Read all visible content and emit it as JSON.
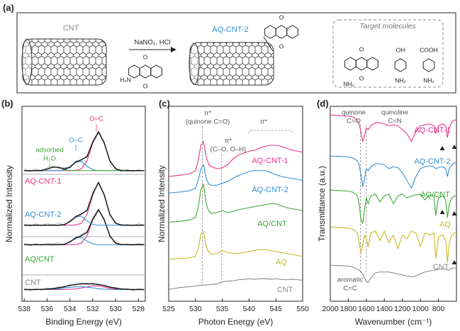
{
  "scheme": {
    "panel": "(a)",
    "start_label": "CNT",
    "reagents": "NaNO₂, HCl",
    "product_label": "AQ-CNT-2",
    "target_title": "Target molecules",
    "atom_labels": [
      "O",
      "O",
      "H₂N",
      "O",
      "O",
      "O",
      "O",
      "NH₂",
      "OH",
      "NH₂",
      "COOH",
      "NH₂"
    ]
  },
  "chart_data": [
    {
      "type": "line",
      "panel": "(b)",
      "xlabel": "Binding Energy (eV)",
      "ylabel": "Normalized Intensity",
      "xlim": [
        538.2,
        527.4
      ],
      "ylim": [
        0,
        100
      ],
      "xticks": [
        538,
        536,
        534,
        532,
        530,
        528
      ],
      "x": [
        538,
        537.5,
        537,
        536.5,
        536,
        535.5,
        535,
        534.5,
        534,
        533.5,
        533,
        532.5,
        532,
        531.5,
        531,
        530.5,
        530,
        529.5,
        529,
        528.5,
        528,
        527.5
      ],
      "series": [
        {
          "color": "#b0b0b0",
          "values": [
            6.7,
            5.3,
            6.5,
            5.6,
            6.8,
            6.1,
            7.5,
            7.0,
            8.6,
            8.1,
            9.5,
            8.6,
            9.4,
            8.2,
            8.5,
            7.0,
            7.2,
            5.8,
            6.7,
            5.4,
            6.6,
            5.8
          ]
        },
        {
          "color": "#e8318a",
          "values": [
            6,
            6,
            6,
            6,
            6,
            6,
            6,
            6,
            6.1,
            6.3,
            6.8,
            7.4,
            7.9,
            7.9,
            7.3,
            6.7,
            6.3,
            6.1,
            6,
            6,
            6,
            6
          ]
        },
        {
          "color": "#2f8fd8",
          "values": [
            6,
            6,
            6,
            6,
            6.1,
            6.2,
            6.3,
            6.8,
            7.1,
            7.4,
            7.5,
            7.2,
            6.9,
            6.4,
            6.2,
            6.1,
            6,
            6,
            6,
            6,
            6,
            6
          ]
        },
        {
          "color": "#111111",
          "values": [
            6,
            6,
            6,
            6.1,
            6.2,
            6.5,
            6.9,
            7.5,
            8.1,
            8.6,
            8.9,
            9,
            8.9,
            8.6,
            8.0,
            7.3,
            6.7,
            6.3,
            6.1,
            6,
            6,
            6
          ]
        },
        {
          "color": "#b0b0b0",
          "values": [
            29.7,
            28.4,
            29.6,
            28.6,
            29.9,
            29.2,
            30.1,
            28.7,
            30.9,
            31.8,
            34.2,
            35.9,
            41.4,
            46.3,
            42.5,
            33.0,
            30.3,
            28.6,
            29.5,
            28.5,
            29.7,
            29.0
          ]
        },
        {
          "color": "#e8318a",
          "values": [
            29,
            29,
            29,
            29,
            29,
            29,
            29,
            29,
            29,
            29.1,
            29.8,
            33.5,
            41.8,
            47,
            41.8,
            33.5,
            29.8,
            29.1,
            29,
            29,
            29,
            29
          ]
        },
        {
          "color": "#2f8fd8",
          "values": [
            29,
            29,
            29,
            29,
            29,
            29,
            29,
            29.2,
            30.4,
            32.4,
            32.8,
            30.8,
            29.4,
            29,
            29,
            29,
            29,
            29,
            29,
            29,
            29,
            29
          ]
        },
        {
          "color": "#111111",
          "values": [
            29,
            29,
            29,
            29,
            29,
            29,
            29,
            29.2,
            30.4,
            32.5,
            33.6,
            35.3,
            42.2,
            47,
            41.8,
            33.5,
            29.8,
            29.1,
            29,
            29,
            29,
            29
          ]
        },
        {
          "color": "#b0b0b0",
          "values": [
            39.6,
            38.5,
            39.8,
            38.7,
            39.9,
            39.2,
            40.2,
            38.8,
            41.5,
            42.8,
            45.3,
            46.1,
            55.8,
            60.3,
            55.2,
            43.9,
            40.6,
            38.5,
            39.5,
            38.7,
            39.8,
            39.1
          ]
        },
        {
          "color": "#e8318a",
          "values": [
            39,
            39,
            39,
            39,
            39,
            39,
            39,
            39,
            39,
            39.1,
            40,
            44.5,
            54.6,
            61,
            54.6,
            44.5,
            40,
            39.1,
            39,
            39,
            39,
            39
          ]
        },
        {
          "color": "#2f8fd8",
          "values": [
            39,
            39,
            39,
            39,
            39,
            39,
            39,
            39.3,
            40.8,
            43.3,
            43.7,
            41.2,
            39.5,
            39,
            39,
            39,
            39,
            39,
            39,
            39,
            39,
            39
          ]
        },
        {
          "color": "#111111",
          "values": [
            39,
            39,
            39,
            39,
            39,
            39,
            39,
            39.3,
            40.8,
            43.4,
            44.7,
            46.7,
            55.1,
            61,
            54.6,
            44.5,
            40,
            39.1,
            39,
            39,
            39,
            39
          ]
        },
        {
          "color": "#b0b0b0",
          "values": [
            67.8,
            66.4,
            67.9,
            66.6,
            68.5,
            69.5,
            68.0,
            68.6,
            68.1,
            72.0,
            72.1,
            74.8,
            81.0,
            86.2,
            82.0,
            71.4,
            68.5,
            66.5,
            67.6,
            66.6,
            67.5,
            66.9
          ]
        },
        {
          "color": "#e8318a",
          "values": [
            67,
            67,
            67,
            67,
            67,
            67,
            67,
            67,
            67,
            67.1,
            67.9,
            72,
            81.2,
            87,
            81.2,
            72,
            67.9,
            67.1,
            67,
            67,
            67,
            67
          ]
        },
        {
          "color": "#2f8fd8",
          "values": [
            67,
            67,
            67,
            67,
            67,
            67,
            67,
            67.3,
            68.8,
            71.3,
            71.7,
            69.2,
            67.5,
            67,
            67,
            67,
            67,
            67,
            67,
            67,
            67,
            67
          ]
        },
        {
          "color": "#3aa935",
          "values": [
            67,
            67,
            67,
            67,
            67.8,
            68.8,
            68.7,
            67.6,
            67,
            67,
            67,
            67,
            67,
            67,
            67,
            67,
            67,
            67,
            67,
            67,
            67,
            67
          ]
        },
        {
          "color": "#111111",
          "values": [
            67,
            67,
            67,
            67.1,
            67.8,
            68.8,
            68.7,
            67.9,
            68.8,
            71.4,
            72.6,
            74.2,
            81.7,
            87,
            81.2,
            72,
            67.9,
            67.1,
            67,
            67,
            67,
            67
          ]
        }
      ],
      "sample_labels": [
        "AQ-CNT-1",
        "AQ-CNT-2",
        "AQ/CNT",
        "CNT"
      ],
      "label_colors": [
        "#e8318a",
        "#2f8fd8",
        "#3aa935",
        "#888888"
      ],
      "annotations": [
        "O=C",
        "O–C",
        "adsorbed",
        "H₂O"
      ],
      "annotation_colors": [
        "#e8318a",
        "#2f8fd8",
        "#3aa935",
        "#3aa935"
      ]
    },
    {
      "type": "line",
      "panel": "(c)",
      "xlabel": "Photon Energy (eV)",
      "ylabel": "Normalized Intensity",
      "xlim": [
        525,
        550
      ],
      "ylim": [
        0,
        100
      ],
      "xticks": [
        525,
        530,
        535,
        540,
        545,
        550
      ],
      "x": [
        525,
        526,
        527,
        528,
        529,
        530,
        530.5,
        531,
        531.5,
        532,
        532.5,
        533,
        534,
        535,
        536,
        537,
        538,
        539,
        540,
        541,
        542,
        543,
        544,
        545,
        546,
        547,
        548,
        549,
        550
      ],
      "series": [
        {
          "name": "AQ-CNT-1",
          "color": "#e8318a",
          "values": [
            64,
            64.3,
            64.6,
            65,
            65.5,
            67,
            72,
            80,
            82,
            74,
            70,
            69,
            68,
            68.5,
            70,
            73,
            75,
            76,
            77,
            77.5,
            78.5,
            79.5,
            80,
            80,
            79.5,
            78.5,
            77.5,
            77,
            76.5
          ]
        },
        {
          "name": "AQ-CNT-2",
          "color": "#2f8fd8",
          "values": [
            55.5,
            55.8,
            56,
            56.3,
            56.8,
            58,
            62,
            68,
            70,
            63,
            60,
            59.5,
            59.5,
            60.5,
            61.5,
            63,
            64.5,
            65.5,
            66.5,
            67,
            67,
            67,
            66,
            65,
            64,
            63.5,
            63,
            62.5,
            62
          ]
        },
        {
          "name": "AQ/CNT",
          "color": "#3aa935",
          "values": [
            40.5,
            40.8,
            41,
            41.3,
            41.8,
            43,
            48,
            57,
            60,
            50,
            46,
            45,
            45.5,
            46.5,
            45.5,
            46,
            47,
            47.5,
            48,
            48.5,
            49,
            49.5,
            50,
            50,
            49,
            48,
            47.5,
            47,
            46.5
          ]
        },
        {
          "name": "AQ",
          "color": "#c8b820",
          "values": [
            21.5,
            21.7,
            21.9,
            22.1,
            22.3,
            23,
            27,
            34,
            36,
            28,
            25,
            24,
            24.5,
            26,
            25,
            24.5,
            24.5,
            25,
            25.5,
            26,
            26.5,
            26.5,
            26,
            25.5,
            25,
            24.5,
            24,
            23.5,
            23
          ]
        },
        {
          "name": "CNT",
          "color": "#888888",
          "values": [
            6,
            6.5,
            7,
            7.2,
            7.5,
            7.8,
            8,
            8.3,
            8.2,
            8.4,
            8.5,
            8.6,
            8.8,
            10,
            10.3,
            10.5,
            11,
            11.2,
            11.5,
            11.3,
            11.5,
            11.6,
            11.3,
            11.5,
            11.2,
            11,
            11.3,
            11,
            10.8
          ]
        }
      ],
      "annotations": [
        "π*",
        "(quinone C=O)",
        "π*",
        "(C–O, O–H)",
        "σ*"
      ]
    },
    {
      "type": "line",
      "panel": "(d)",
      "xlabel": "Wavenumber (cm⁻¹)",
      "ylabel": "Transmittance (a.u.)",
      "xlim": [
        2000,
        600
      ],
      "ylim": [
        0,
        100
      ],
      "xticks": [
        2000,
        1800,
        1600,
        1400,
        1200,
        1000,
        800
      ],
      "x": [
        2000,
        1900,
        1800,
        1750,
        1700,
        1680,
        1660,
        1640,
        1620,
        1600,
        1580,
        1550,
        1500,
        1450,
        1400,
        1350,
        1300,
        1250,
        1200,
        1150,
        1100,
        1050,
        1000,
        950,
        900,
        850,
        830,
        800,
        750,
        720,
        700,
        680,
        650,
        620,
        600
      ],
      "series": [
        {
          "name": "AQ-CNT-1",
          "color": "#e8318a",
          "values": [
            95.5,
            95.3,
            95,
            94.5,
            93,
            91,
            87,
            82,
            85,
            89,
            88,
            90,
            91.5,
            91.5,
            91,
            90,
            90.5,
            90,
            88,
            86,
            82,
            87,
            90,
            90.5,
            91,
            90,
            86,
            90,
            91,
            90,
            84,
            89,
            92,
            93,
            93
          ]
        },
        {
          "name": "AQ-CNT-2",
          "color": "#2f8fd8",
          "values": [
            74.5,
            74.3,
            74,
            73.5,
            72,
            70,
            65,
            59,
            63,
            68,
            67,
            69,
            70.5,
            70.5,
            70,
            68,
            69,
            68.5,
            66,
            62,
            58,
            64,
            68,
            69,
            69.5,
            69,
            68,
            68.5,
            69,
            68,
            64,
            68,
            70,
            71,
            71
          ]
        },
        {
          "name": "AQ/CNT",
          "color": "#3aa935",
          "values": [
            57,
            56.8,
            56.5,
            56,
            54,
            50,
            42,
            40,
            47,
            53,
            50,
            54,
            55,
            51,
            54,
            55,
            50,
            54,
            55,
            53,
            54,
            54.5,
            55,
            52,
            54.5,
            54,
            44,
            53,
            54,
            52,
            43,
            50,
            53,
            54,
            54
          ]
        },
        {
          "name": "AQ",
          "color": "#c8b820",
          "values": [
            38,
            37.8,
            37.5,
            37,
            35,
            30,
            25,
            29,
            34,
            32,
            28,
            35,
            36,
            31,
            36,
            30,
            34,
            27,
            34,
            32,
            36,
            35,
            28,
            35,
            34,
            35,
            22,
            33,
            34,
            31,
            20,
            30,
            34,
            35,
            35
          ]
        },
        {
          "name": "CNT",
          "color": "#888888",
          "values": [
            18.5,
            18.3,
            18,
            17.5,
            16.5,
            16,
            15,
            14,
            12,
            10,
            9.5,
            12,
            14.5,
            15,
            15,
            15,
            14.5,
            14,
            13.5,
            13,
            12.5,
            13,
            14,
            15,
            15.5,
            16,
            16,
            16.5,
            16.5,
            16.5,
            16,
            16,
            17,
            17,
            17
          ]
        }
      ],
      "annotations": [
        "quinone",
        "C=O",
        "quinoline",
        "C=N",
        "aromatic",
        "C=C"
      ]
    }
  ]
}
